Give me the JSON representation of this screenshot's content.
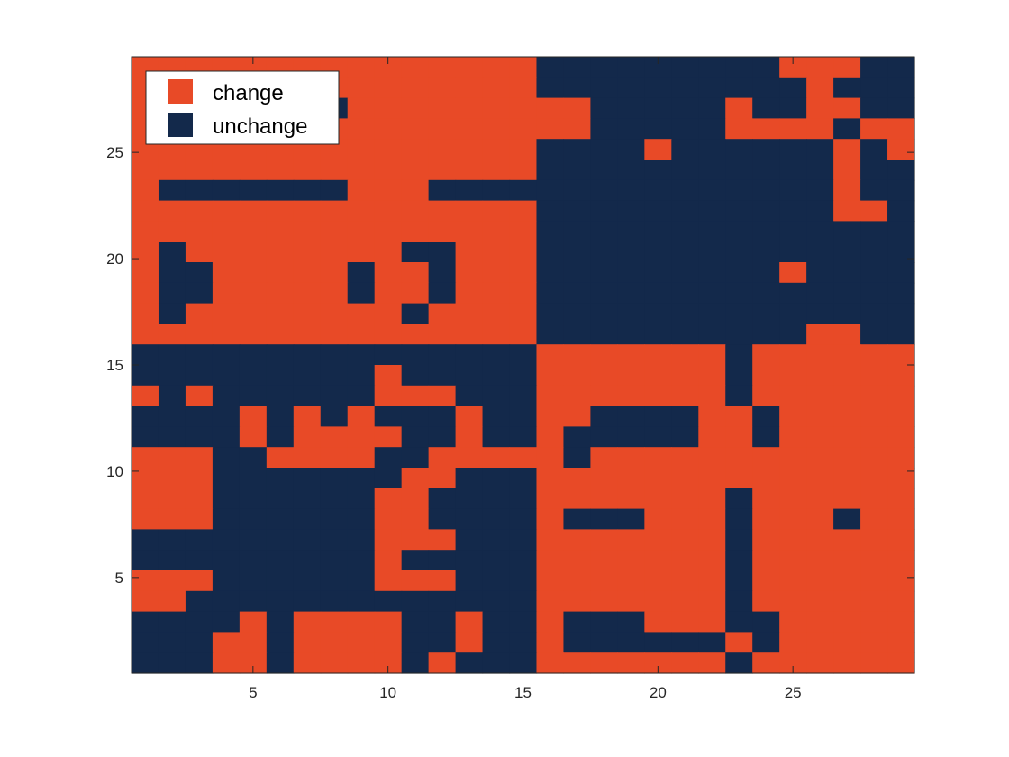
{
  "chart_data": {
    "type": "heatmap",
    "title": "",
    "xlabel": "",
    "ylabel": "",
    "xlim": [
      0.5,
      29.5
    ],
    "ylim": [
      0.5,
      29.5
    ],
    "x_ticks": [
      5,
      10,
      15,
      20,
      25
    ],
    "y_ticks": [
      5,
      10,
      15,
      20,
      25
    ],
    "grid": false,
    "legend_position": "top-left",
    "categories": [
      {
        "value": 1,
        "name": "change",
        "color": "#E84A27"
      },
      {
        "value": 0,
        "name": "unchange",
        "color": "#13294B"
      }
    ],
    "matrix_top_row_first": [
      "11111111111111100000000011100",
      "11111111111111100000000001000",
      "11111110111111111000001001100",
      "11111111111111111000001111011",
      "11111111111111100001000000101",
      "11111111111111100000000000100",
      "10000000111000000000000000100",
      "11111111111111100000000000110",
      "11111111111111100000000000000",
      "10111111110011100000000000000",
      "10011111011011100000000010000",
      "10011111011011100000000000000",
      "10111111110111100000000000000",
      "11111111111111100000000001100",
      "00000000000000011111110111111",
      "00000000010000011111110111111",
      "10100000011100011111110111111",
      "00001010100010011000011011111",
      "00001011110010010000011011111",
      "11100111100111110111111111111",
      "11100000001100011111111111111",
      "11100000011000011111110111111",
      "11100000011000010001110111011",
      "00000000011100011111110111111",
      "00000000010000011111110111111",
      "11100000011100011111110111111",
      "11000000000000011111110111111",
      "00001011110010010001110011111",
      "00011011110010010000001011111",
      "00011011110100011111110111111"
    ]
  }
}
